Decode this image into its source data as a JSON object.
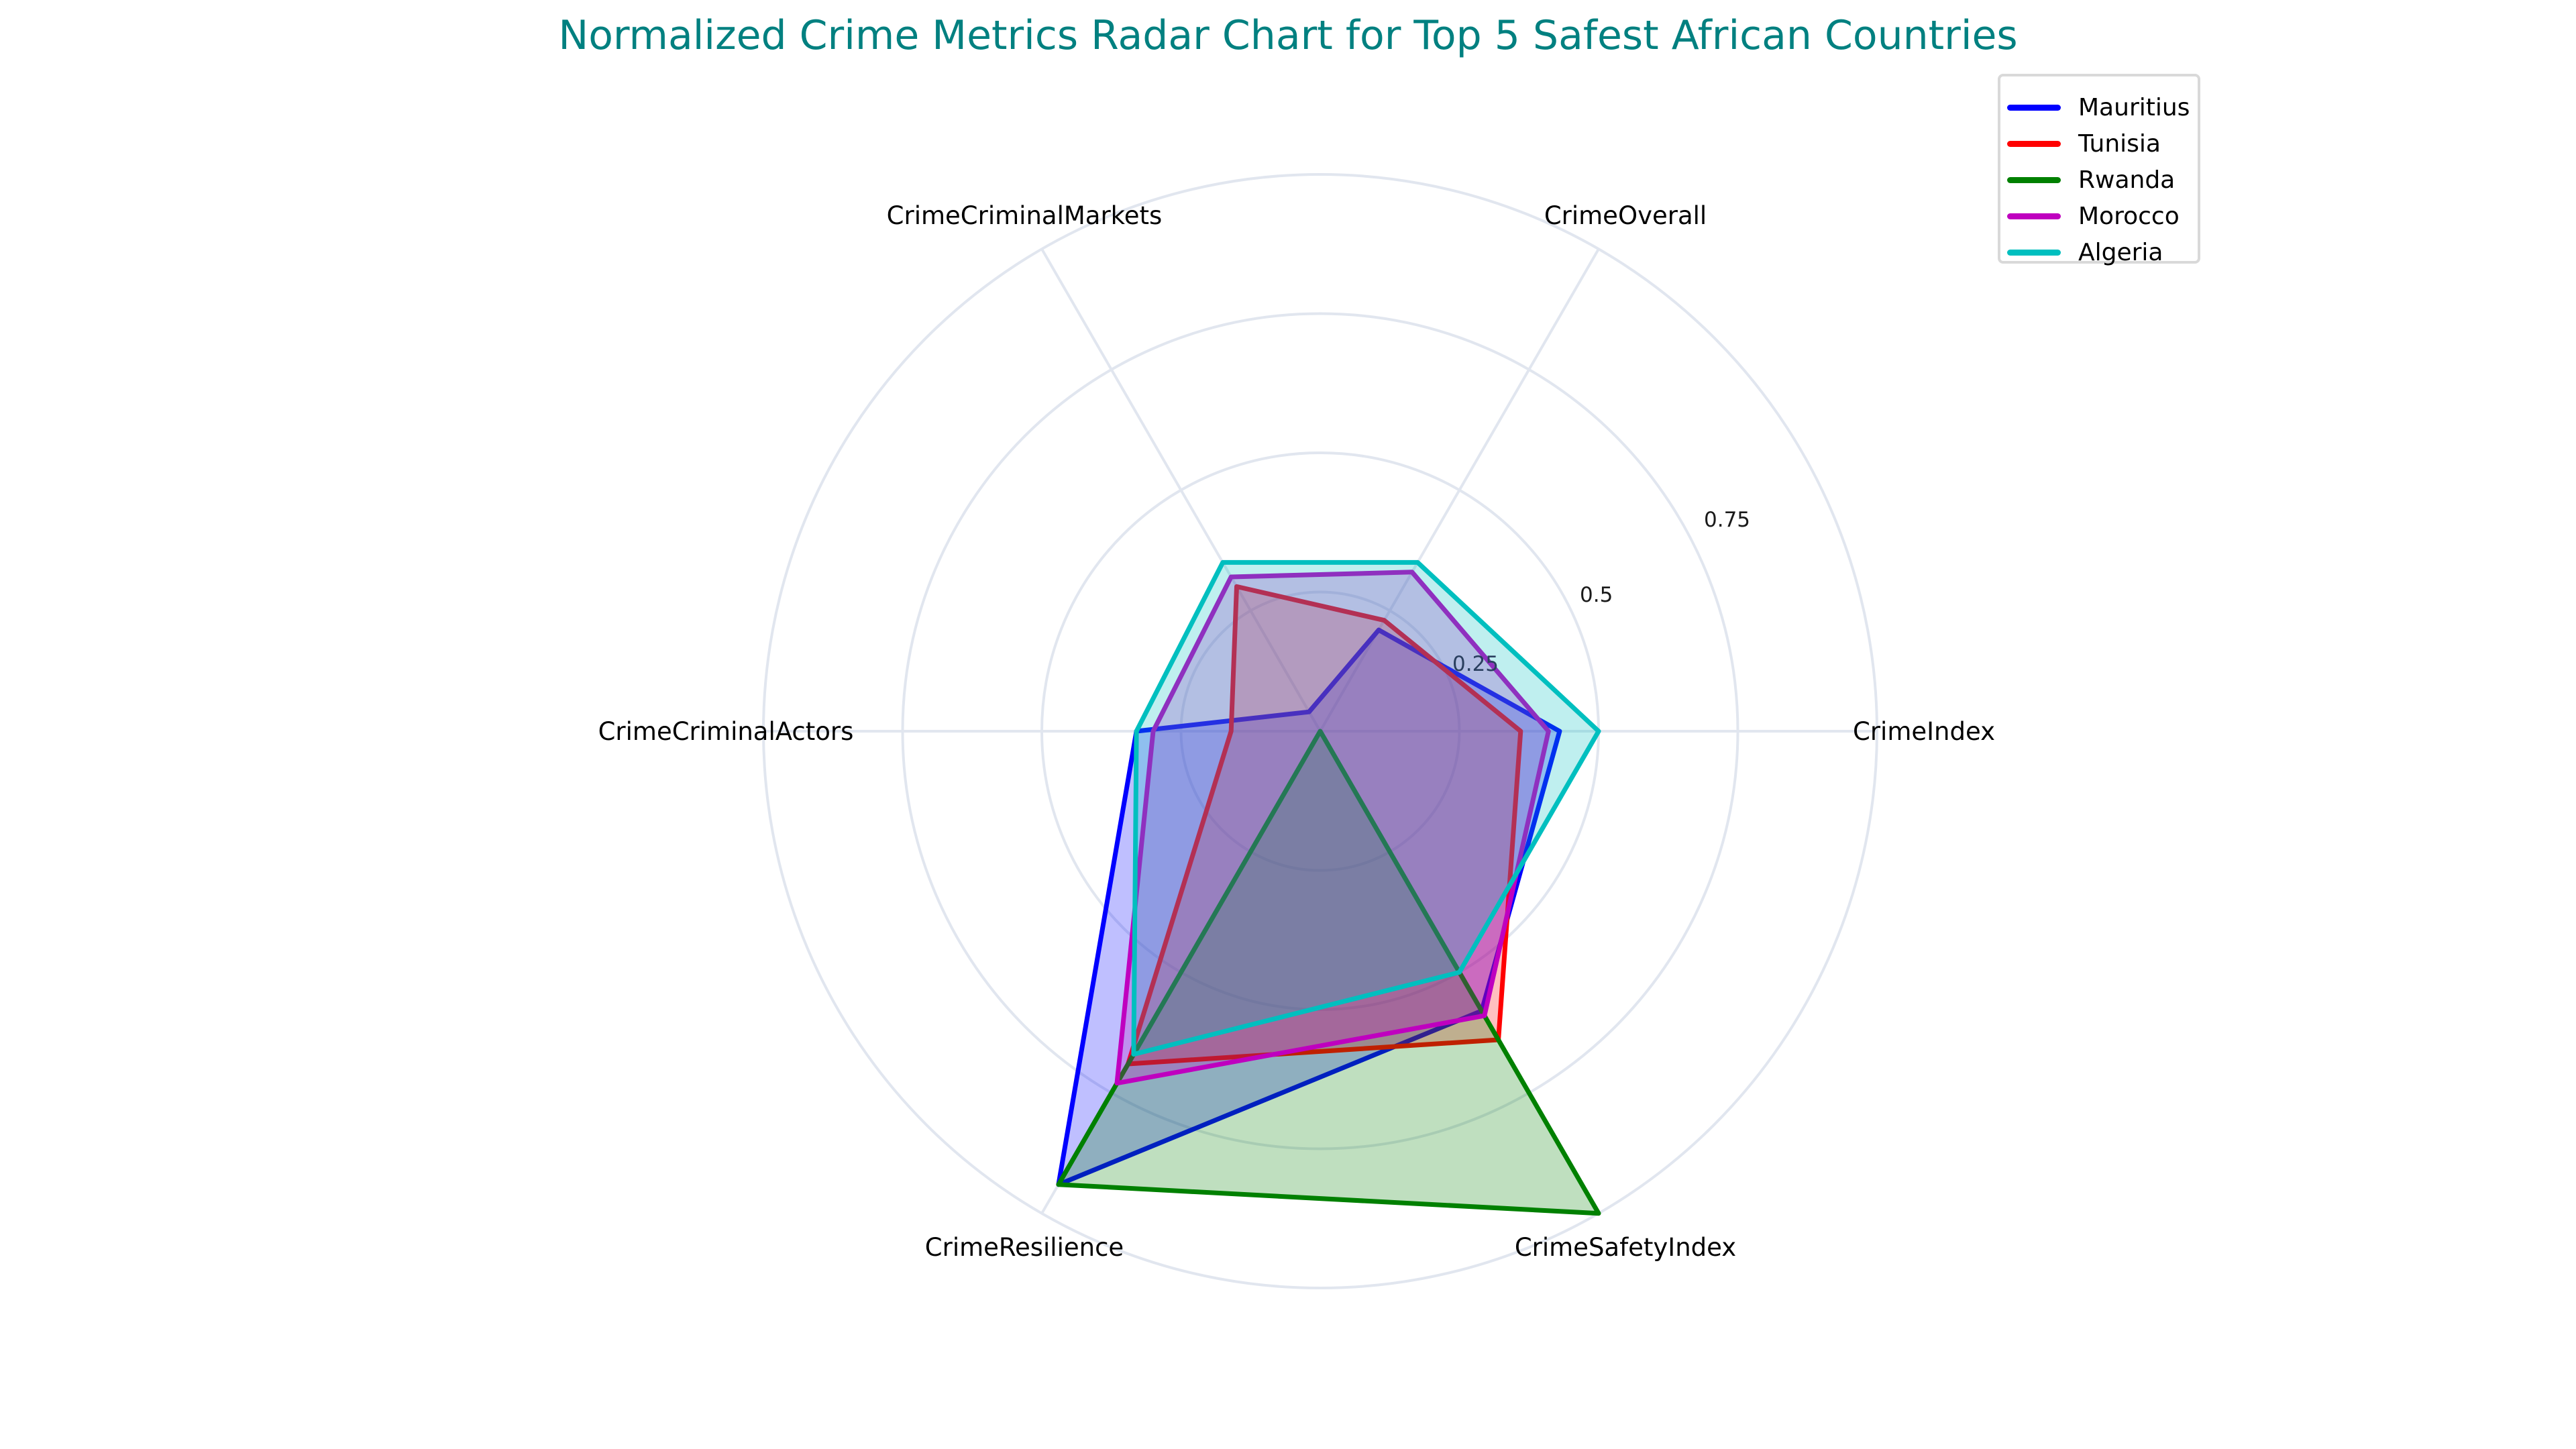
{
  "title": "Normalized Crime Metrics Radar Chart for Top 5 Safest African Countries",
  "title_color": "#008080",
  "legend": {
    "items": [
      {
        "label": "Mauritius",
        "color": "#0000ff"
      },
      {
        "label": "Tunisia",
        "color": "#ff0000"
      },
      {
        "label": "Rwanda",
        "color": "#008000"
      },
      {
        "label": "Morocco",
        "color": "#bf00bf"
      },
      {
        "label": "Algeria",
        "color": "#00bfbf"
      }
    ]
  },
  "axes": {
    "labels": [
      "CrimeIndex",
      "CrimeOverall",
      "CrimeCriminalMarkets",
      "CrimeCriminalActors",
      "CrimeResilience",
      "CrimeSafetyIndex"
    ],
    "radial_ticks": [
      "0.25",
      "0.5",
      "0.75"
    ]
  },
  "chart_data": {
    "type": "radar",
    "title": "Normalized Crime Metrics Radar Chart for Top 5 Safest African Countries",
    "categories": [
      "CrimeIndex",
      "CrimeOverall",
      "CrimeCriminalMarkets",
      "CrimeCriminalActors",
      "CrimeResilience",
      "CrimeSafetyIndex"
    ],
    "series": [
      {
        "name": "Mauritius",
        "color": "#0000ff",
        "values": [
          0.43,
          0.21,
          0.04,
          0.33,
          0.94,
          0.58
        ]
      },
      {
        "name": "Tunisia",
        "color": "#ff0000",
        "values": [
          0.36,
          0.23,
          0.3,
          0.16,
          0.69,
          0.64
        ]
      },
      {
        "name": "Rwanda",
        "color": "#008000",
        "values": [
          0.0,
          0.0,
          0.0,
          0.0,
          0.94,
          1.0
        ]
      },
      {
        "name": "Morocco",
        "color": "#bf00bf",
        "values": [
          0.41,
          0.33,
          0.32,
          0.3,
          0.73,
          0.59
        ]
      },
      {
        "name": "Algeria",
        "color": "#00bfbf",
        "values": [
          0.5,
          0.35,
          0.35,
          0.33,
          0.67,
          0.5
        ]
      }
    ],
    "radial_range": [
      0,
      1
    ],
    "radial_ticks": [
      0.25,
      0.5,
      0.75
    ],
    "grid": true,
    "fill": "toself",
    "legend_position": "top-right"
  }
}
